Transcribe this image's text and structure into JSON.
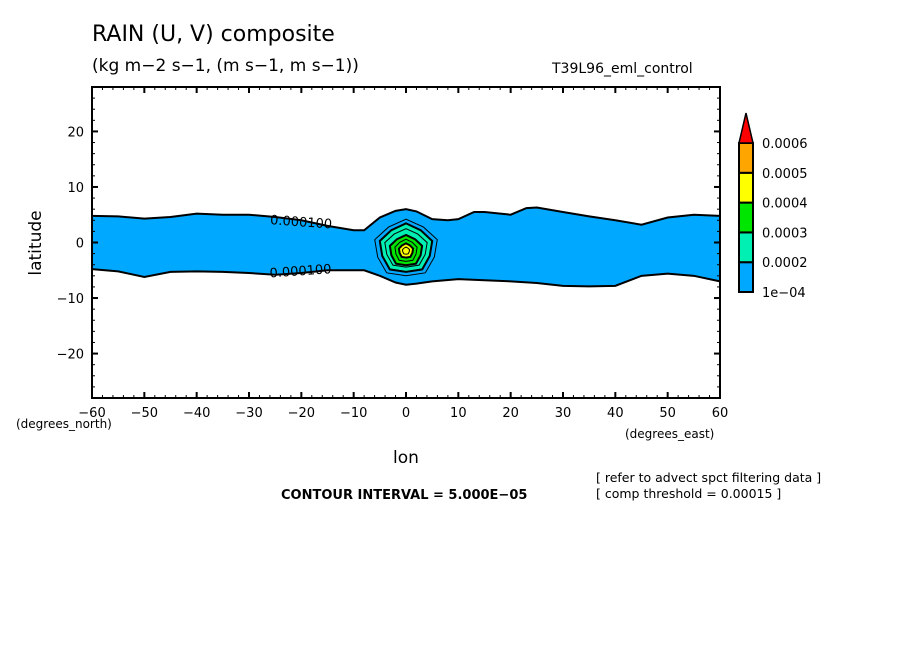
{
  "chart_data": {
    "type": "contour",
    "title": "RAIN (U, V) composite",
    "subtitle": "(kg m−2 s−1, (m s−1, m s−1))",
    "experiment": "T39L96_eml_control",
    "xlabel": "lon",
    "ylabel": "latitude",
    "x_units": "(degrees_east)",
    "y_units": "(degrees_north)",
    "xlim": [
      -60,
      60
    ],
    "ylim": [
      -28,
      28
    ],
    "x_ticks": [
      -60,
      -50,
      -40,
      -30,
      -20,
      -10,
      0,
      10,
      20,
      30,
      40,
      50,
      60
    ],
    "x_tick_labels": [
      "−60",
      "−50",
      "−40",
      "−30",
      "−20",
      "−10",
      "0",
      "10",
      "20",
      "30",
      "40",
      "50",
      "60"
    ],
    "y_ticks": [
      -20,
      -10,
      0,
      10,
      20
    ],
    "y_tick_labels": [
      "−20",
      "−10",
      "0",
      "10",
      "20"
    ],
    "colorbar": {
      "levels": [
        "1e−04",
        "0.0002",
        "0.0003",
        "0.0004",
        "0.0005",
        "0.0006"
      ],
      "colors": [
        "#00a8ff",
        "#00f0b4",
        "#00e600",
        "#ffff00",
        "#ffa500",
        "#ff0000"
      ],
      "extend": "max"
    },
    "contour_labels": [
      "0.000100",
      "0.000100"
    ],
    "band_north_edge": {
      "lon": [
        -60,
        -55,
        -50,
        -45,
        -40,
        -35,
        -30,
        -25,
        -20,
        -15,
        -10,
        -8,
        -5,
        -2,
        0,
        2,
        5,
        8,
        10,
        13,
        15,
        20,
        23,
        25,
        30,
        35,
        40,
        45,
        50,
        55,
        60
      ],
      "lat": [
        4.8,
        4.7,
        4.3,
        4.6,
        5.2,
        5.0,
        5.0,
        4.6,
        4.0,
        3.0,
        2.2,
        2.2,
        4.5,
        5.7,
        6.0,
        5.6,
        4.2,
        4.0,
        4.2,
        5.5,
        5.5,
        5.0,
        6.2,
        6.3,
        5.5,
        4.7,
        4.0,
        3.2,
        4.5,
        5.0,
        4.8
      ]
    },
    "band_south_edge": {
      "lon": [
        -60,
        -55,
        -50,
        -45,
        -40,
        -35,
        -30,
        -25,
        -20,
        -15,
        -10,
        -8,
        -5,
        -2,
        0,
        2,
        5,
        10,
        15,
        20,
        25,
        30,
        35,
        40,
        45,
        50,
        55,
        60
      ],
      "lat": [
        -4.8,
        -5.2,
        -6.2,
        -5.3,
        -5.2,
        -5.3,
        -5.5,
        -5.8,
        -5.5,
        -5.0,
        -5.0,
        -5.0,
        -6.0,
        -7.2,
        -7.6,
        -7.4,
        -7.0,
        -6.6,
        -6.8,
        -7.0,
        -7.3,
        -7.8,
        -7.9,
        -7.8,
        -6.0,
        -5.6,
        -6.0,
        -7.0
      ]
    },
    "peak": {
      "lon": 0,
      "lat": -1.5,
      "max_value": 0.00055
    },
    "contour_interval": 5e-05
  },
  "footer": {
    "contour_interval": "CONTOUR INTERVAL = 5.000E−05",
    "note1": "[ refer to advect spct filtering data ]",
    "note2": "[ comp threshold = 0.00015 ]"
  }
}
